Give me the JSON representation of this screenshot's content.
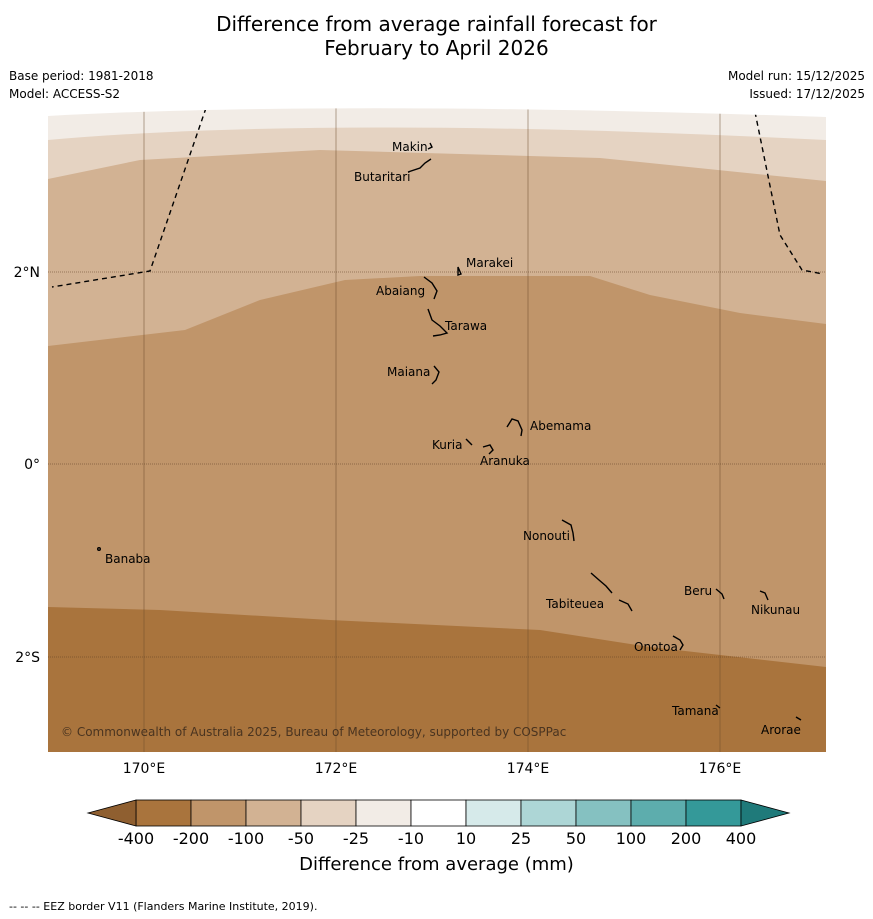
{
  "title_line1": "Difference from average rainfall forecast for",
  "title_line2": "February to April 2026",
  "base_period": "Base period: 1981-2018",
  "model": "Model: ACCESS-S2",
  "model_run": "Model run: 15/12/2025",
  "issued": "Issued: 17/12/2025",
  "copyright": "© Commonwealth of Australia 2025, Bureau of Meteorology, supported by COSPPac",
  "lon_labels": [
    "170°E",
    "172°E",
    "174°E",
    "176°E"
  ],
  "lat_labels": [
    "2°N",
    "0°",
    "2°S"
  ],
  "islands": [
    "Makin",
    "Butaritari",
    "Marakei",
    "Abaiang",
    "Tarawa",
    "Maiana",
    "Abemama",
    "Kuria",
    "Aranuka",
    "Nonouti",
    "Banaba",
    "Beru",
    "Nikunau",
    "Tabiteuea",
    "Onotoa",
    "Tamana",
    "Arorae"
  ],
  "colorbar": {
    "labels": [
      "-400",
      "-200",
      "-100",
      "-50",
      "-25",
      "-10",
      "10",
      "25",
      "50",
      "100",
      "200",
      "400"
    ],
    "colors": [
      "#a9743d",
      "#c0956a",
      "#d2b293",
      "#e5d3c2",
      "#f2ece6",
      "#ffffff",
      "#d6eaea",
      "#add6d6",
      "#85c1c1",
      "#5dadad",
      "#349999"
    ],
    "extend_low_color": "#8f5f30",
    "extend_high_color": "#1f7a7a",
    "title": "Difference from average (mm)"
  },
  "footnote": "-- -- -- EEZ border V11 (Flanders Marine Institute, 2019)."
}
